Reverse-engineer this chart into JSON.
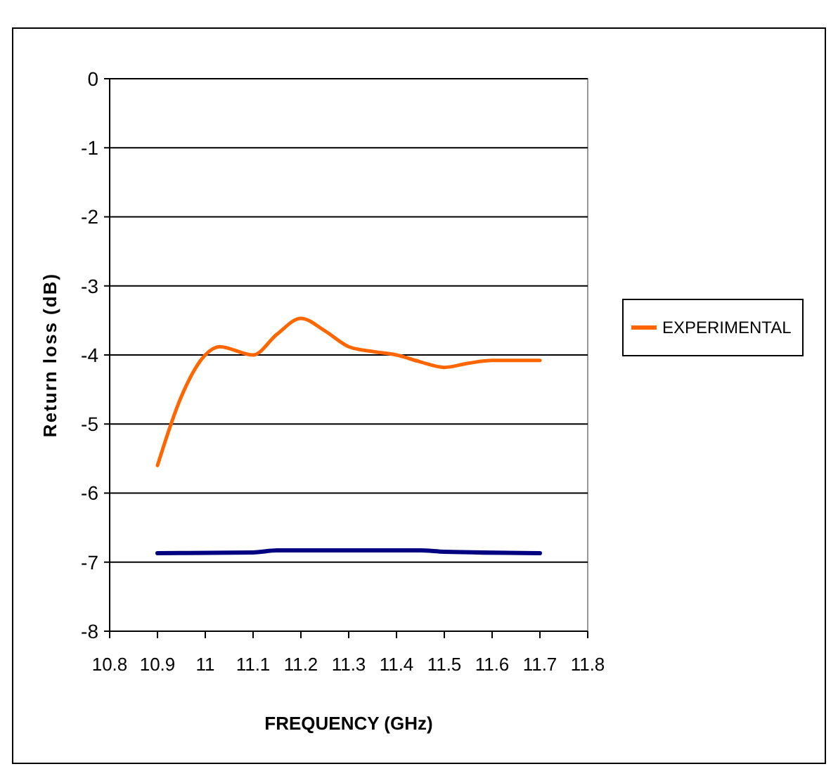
{
  "chart_data": {
    "type": "line",
    "xlabel": "FREQUENCY (GHz)",
    "ylabel": "Return loss (dB)",
    "xlim": [
      10.8,
      11.8
    ],
    "xticks": [
      10.8,
      10.9,
      11,
      11.1,
      11.2,
      11.3,
      11.4,
      11.5,
      11.6,
      11.7,
      11.8
    ],
    "ylim": [
      -8,
      0
    ],
    "yticks": [
      -8,
      -7,
      -6,
      -5,
      -4,
      -3,
      -2,
      -1,
      0
    ],
    "grid": "y",
    "legend": "right",
    "marker": "none",
    "line_style": "solid",
    "series": [
      {
        "color": "#000080",
        "x": [
          10.9,
          11.1,
          11.15,
          11.45,
          11.5,
          11.7
        ],
        "values": [
          -6.87,
          -6.86,
          -6.83,
          -6.83,
          -6.85,
          -6.87
        ]
      },
      {
        "name": "EXPERIMENTAL",
        "color": "#ff6600",
        "x": [
          10.9,
          10.95,
          11.0,
          11.03,
          11.1,
          11.15,
          11.2,
          11.25,
          11.3,
          11.35,
          11.4,
          11.45,
          11.5,
          11.55,
          11.6,
          11.7
        ],
        "values": [
          -5.6,
          -4.6,
          -4.0,
          -3.88,
          -4.0,
          -3.7,
          -3.47,
          -3.65,
          -3.88,
          -3.95,
          -4.0,
          -4.1,
          -4.18,
          -4.12,
          -4.08,
          -4.08
        ]
      }
    ]
  }
}
